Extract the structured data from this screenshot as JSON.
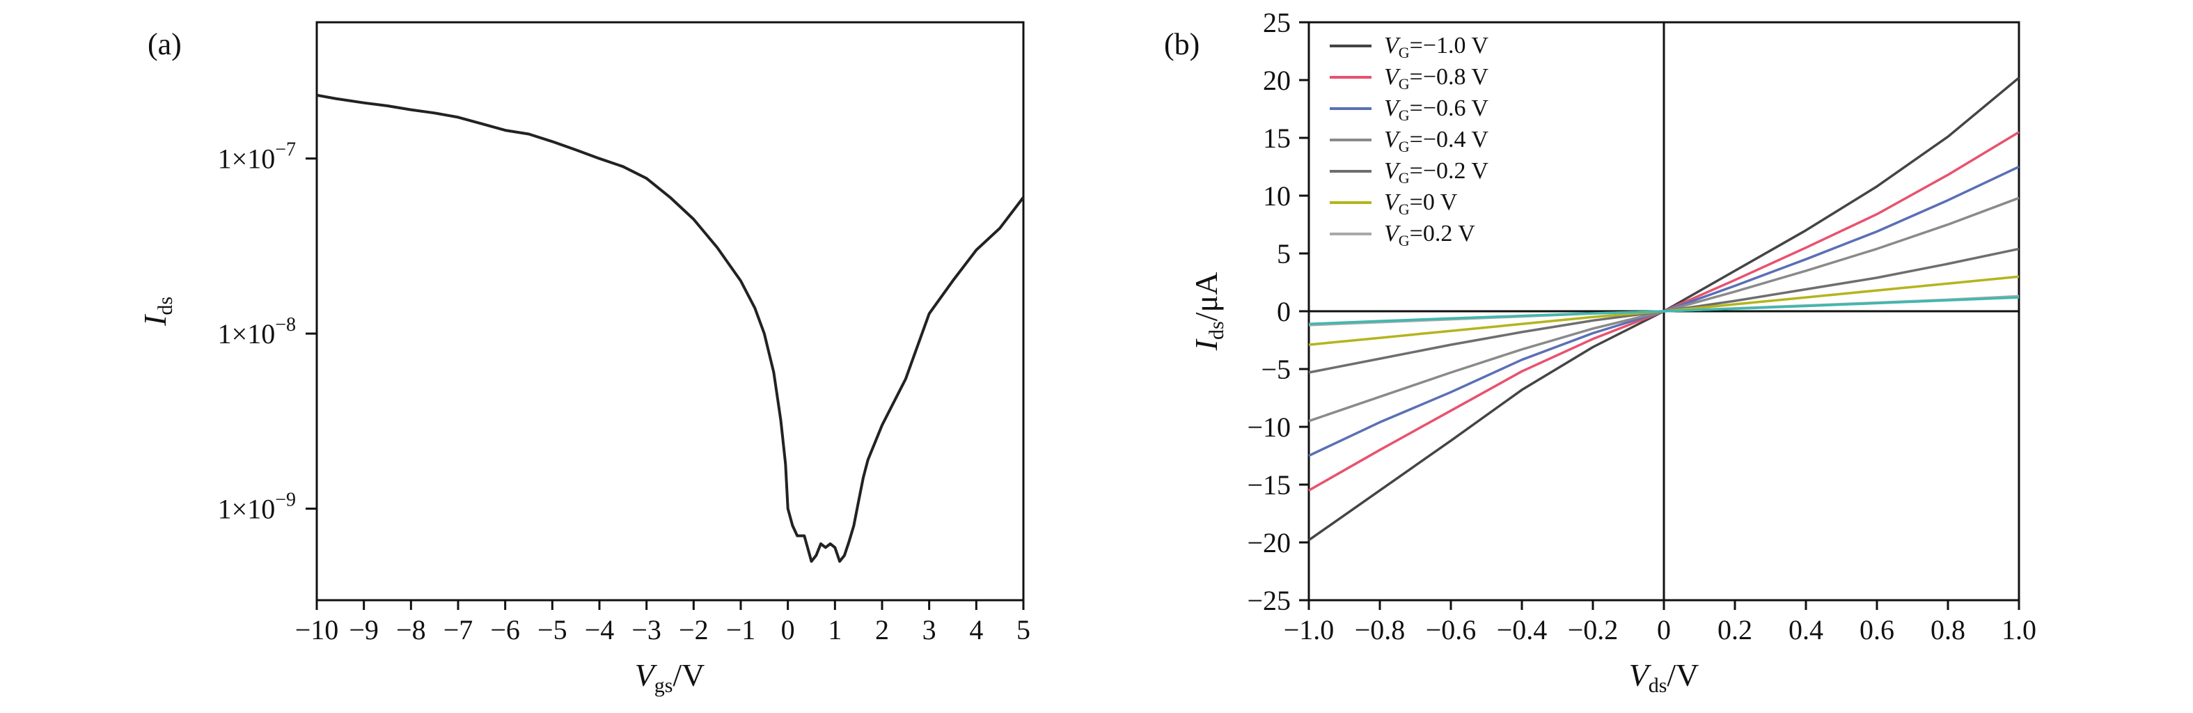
{
  "chart_data": [
    {
      "type": "line",
      "panel_label": "(a)",
      "xlabel_main": "V",
      "xlabel_sub": "gs",
      "xlabel_unit": "/V",
      "ylabel_main": "I",
      "ylabel_sub": "ds",
      "xlim": [
        -10,
        5
      ],
      "ylim": [
        3e-10,
        6e-07
      ],
      "yscale": "log",
      "x_ticks": [
        -10,
        -9,
        -8,
        -7,
        -6,
        -5,
        -4,
        -3,
        -2,
        -1,
        0,
        1,
        2,
        3,
        4,
        5
      ],
      "x_tick_labels": [
        "−10",
        "−9",
        "−8",
        "−7",
        "−6",
        "−5",
        "−4",
        "−3",
        "−2",
        "−1",
        "0",
        "1",
        "2",
        "3",
        "4",
        "5"
      ],
      "y_ticks": [
        {
          "value": 1e-07,
          "label_base": "1×10",
          "label_exp": "−7"
        },
        {
          "value": 1e-08,
          "label_base": "1×10",
          "label_exp": "−8"
        },
        {
          "value": 1e-09,
          "label_base": "1×10",
          "label_exp": "−9"
        }
      ],
      "series": [
        {
          "color": "#222222",
          "x": [
            -10,
            -9.6,
            -9,
            -8.5,
            -8,
            -7.5,
            -7,
            -6.5,
            -6,
            -5.5,
            -5,
            -4.5,
            -4,
            -3.5,
            -3,
            -2.5,
            -2,
            -1.5,
            -1,
            -0.7,
            -0.5,
            -0.3,
            -0.15,
            -0.05,
            0,
            0.1,
            0.2,
            0.35,
            0.5,
            0.6,
            0.7,
            0.8,
            0.9,
            1.0,
            1.1,
            1.2,
            1.3,
            1.4,
            1.5,
            1.6,
            1.7,
            2.0,
            2.5,
            3.0,
            3.5,
            4.0,
            4.5,
            5.0
          ],
          "y": [
            2.3e-07,
            2.2e-07,
            2.08e-07,
            2e-07,
            1.9e-07,
            1.82e-07,
            1.72e-07,
            1.58e-07,
            1.45e-07,
            1.38e-07,
            1.25e-07,
            1.12e-07,
            1e-07,
            9e-08,
            7.7e-08,
            6e-08,
            4.5e-08,
            3.1e-08,
            2e-08,
            1.4e-08,
            1e-08,
            6e-09,
            3.2e-09,
            1.8e-09,
            1e-09,
            8e-10,
            7e-10,
            7e-10,
            5e-10,
            5.4e-10,
            6.3e-10,
            6e-10,
            6.3e-10,
            6e-10,
            5e-10,
            5.4e-10,
            6.5e-10,
            8e-10,
            1.1e-09,
            1.5e-09,
            1.9e-09,
            3e-09,
            5.5e-09,
            1.3e-08,
            2e-08,
            3e-08,
            4e-08,
            6e-08
          ]
        }
      ]
    },
    {
      "type": "line",
      "panel_label": "(b)",
      "xlabel_main": "V",
      "xlabel_sub": "ds",
      "xlabel_unit": "/V",
      "ylabel_main": "I",
      "ylabel_sub": "ds",
      "ylabel_unit": "/μA",
      "xlim": [
        -1.0,
        1.0
      ],
      "ylim": [
        -25,
        25
      ],
      "x_ticks": [
        -1.0,
        -0.8,
        -0.6,
        -0.4,
        -0.2,
        0,
        0.2,
        0.4,
        0.6,
        0.8,
        1.0
      ],
      "x_tick_labels": [
        "−1.0",
        "−0.8",
        "−0.6",
        "−0.4",
        "−0.2",
        "0",
        "0.2",
        "0.4",
        "0.6",
        "0.8",
        "1.0"
      ],
      "y_ticks": [
        -25,
        -20,
        -15,
        -10,
        -5,
        0,
        5,
        10,
        15,
        20,
        25
      ],
      "y_tick_labels": [
        "−25",
        "−20",
        "−15",
        "−10",
        "−5",
        "0",
        "5",
        "10",
        "15",
        "20",
        "25"
      ],
      "legend_position": "top-left",
      "x": [
        -1.0,
        -0.8,
        -0.6,
        -0.4,
        -0.2,
        0,
        0.2,
        0.4,
        0.6,
        0.8,
        1.0
      ],
      "series": [
        {
          "legend_main": "V",
          "legend_sub": "G",
          "legend_rest": "=−1.0 V",
          "color": "#444444",
          "y": [
            -19.8,
            -15.5,
            -11.2,
            -6.8,
            -3.1,
            0,
            3.5,
            7.0,
            10.8,
            15.1,
            20.2
          ]
        },
        {
          "legend_main": "V",
          "legend_sub": "G",
          "legend_rest": "=−0.8 V",
          "color": "#e8526e",
          "y": [
            -15.5,
            -12.0,
            -8.6,
            -5.2,
            -2.4,
            0,
            2.7,
            5.5,
            8.4,
            11.8,
            15.5
          ]
        },
        {
          "legend_main": "V",
          "legend_sub": "G",
          "legend_rest": "=−0.6 V",
          "color": "#5a6fb5",
          "y": [
            -12.5,
            -9.6,
            -7.0,
            -4.2,
            -1.9,
            0,
            2.2,
            4.5,
            6.9,
            9.6,
            12.5
          ]
        },
        {
          "legend_main": "V",
          "legend_sub": "G",
          "legend_rest": "=−0.4 V",
          "color": "#8a8a8a",
          "y": [
            -9.5,
            -7.4,
            -5.3,
            -3.3,
            -1.5,
            0,
            1.7,
            3.5,
            5.4,
            7.5,
            9.8
          ]
        },
        {
          "legend_main": "V",
          "legend_sub": "G",
          "legend_rest": "=−0.2 V",
          "color": "#6e6e6e",
          "y": [
            -5.3,
            -4.1,
            -2.9,
            -1.8,
            -0.8,
            0,
            0.9,
            1.9,
            2.9,
            4.1,
            5.4
          ]
        },
        {
          "legend_main": "V",
          "legend_sub": "G",
          "legend_rest": "=0 V",
          "color": "#b4b41e",
          "y": [
            -2.9,
            -2.3,
            -1.7,
            -1.1,
            -0.5,
            0,
            0.6,
            1.2,
            1.8,
            2.4,
            3.0
          ]
        },
        {
          "legend_main": "V",
          "legend_sub": "G",
          "legend_rest": "=0.2 V",
          "color": "#a8a8a8",
          "y": [
            -1.2,
            -0.95,
            -0.7,
            -0.45,
            -0.2,
            0,
            0.25,
            0.5,
            0.75,
            1.0,
            1.3
          ]
        },
        {
          "color": "#3fb8b0",
          "y": [
            -1.1,
            -0.85,
            -0.62,
            -0.4,
            -0.18,
            0,
            0.22,
            0.45,
            0.7,
            0.95,
            1.2
          ]
        }
      ]
    }
  ]
}
